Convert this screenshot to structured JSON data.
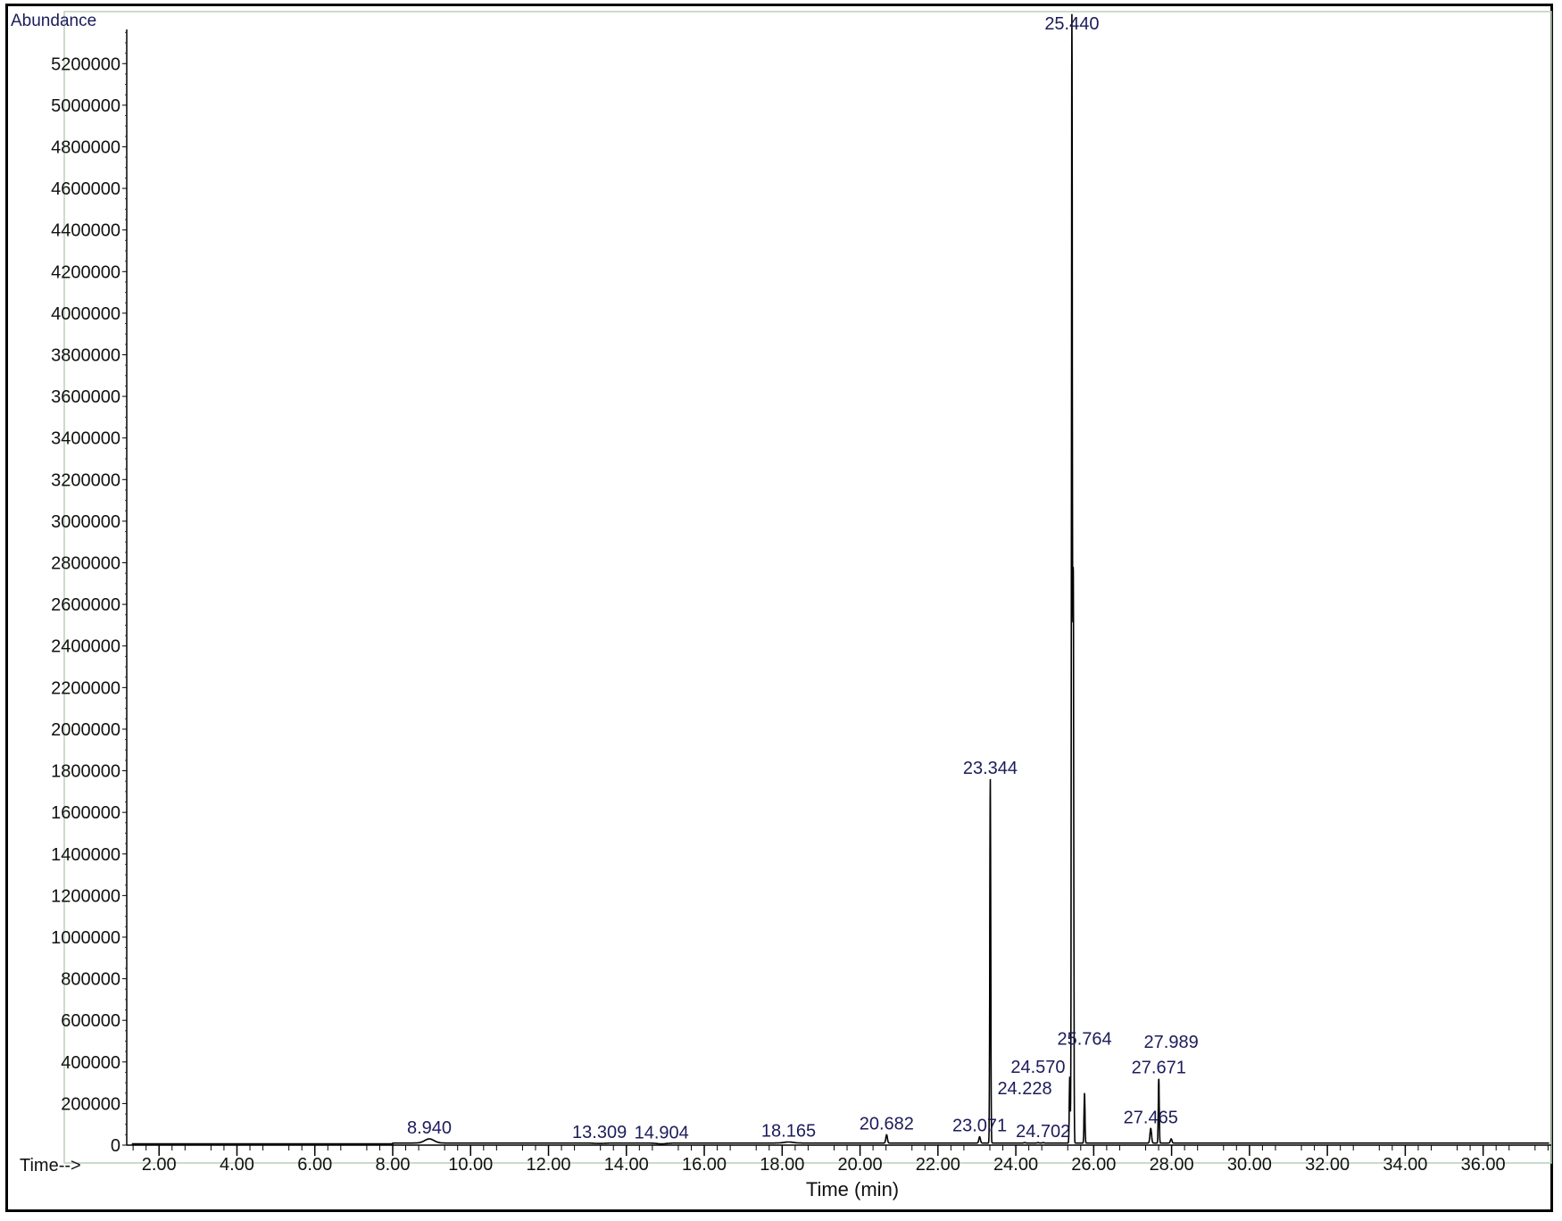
{
  "chart_data": {
    "type": "line",
    "ylabel": "Abundance",
    "xlabel": "Time (min)",
    "x_axis_prefix": "Time-->",
    "xlim": [
      1.17,
      37.75
    ],
    "ylim": [
      0,
      5450000
    ],
    "x_ticks": [
      "2.00",
      "4.00",
      "6.00",
      "8.00",
      "10.00",
      "12.00",
      "14.00",
      "16.00",
      "18.00",
      "20.00",
      "22.00",
      "24.00",
      "26.00",
      "28.00",
      "30.00",
      "32.00",
      "34.00",
      "36.00"
    ],
    "y_ticks": [
      "0",
      "200000",
      "400000",
      "600000",
      "800000",
      "1000000",
      "1200000",
      "1400000",
      "1600000",
      "1800000",
      "2000000",
      "2200000",
      "2400000",
      "2600000",
      "2800000",
      "3000000",
      "3200000",
      "3400000",
      "3600000",
      "3800000",
      "4000000",
      "4200000",
      "4400000",
      "4600000",
      "4800000",
      "5000000",
      "5200000"
    ],
    "grid": false,
    "baseline": 10000,
    "peaks": [
      {
        "rt": 8.94,
        "label": "8.940",
        "abundance": 30000
      },
      {
        "rt": 13.309,
        "label": "13.309",
        "abundance": 8000
      },
      {
        "rt": 14.904,
        "label": "14.904",
        "abundance": 6000
      },
      {
        "rt": 18.165,
        "label": "18.165",
        "abundance": 15000
      },
      {
        "rt": 20.682,
        "label": "20.682",
        "abundance": 50000
      },
      {
        "rt": 23.071,
        "label": "23.071",
        "abundance": 40000
      },
      {
        "rt": 23.344,
        "label": "23.344",
        "abundance": 1760000
      },
      {
        "rt": 24.228,
        "label": "24.228",
        "abundance": 12000
      },
      {
        "rt": 24.57,
        "label": "24.570",
        "abundance": 12000
      },
      {
        "rt": 24.702,
        "label": "24.702",
        "abundance": 12000
      },
      {
        "rt": 25.44,
        "label": "25.440",
        "abundance": 5400000
      },
      {
        "rt": 25.764,
        "label": "25.764",
        "abundance": 250000
      },
      {
        "rt": 27.465,
        "label": "27.465",
        "abundance": 80000
      },
      {
        "rt": 27.671,
        "label": "27.671",
        "abundance": 320000
      },
      {
        "rt": 27.989,
        "label": "27.989",
        "abundance": 30000
      }
    ],
    "unlabeled_peaks": [
      {
        "rt": 25.385,
        "abundance": 330000
      },
      {
        "rt": 25.475,
        "abundance": 2710000
      }
    ],
    "colors": {
      "trace": "#000000",
      "labels": "#1c1c5c",
      "plot_border": "#b8d0b8"
    }
  }
}
